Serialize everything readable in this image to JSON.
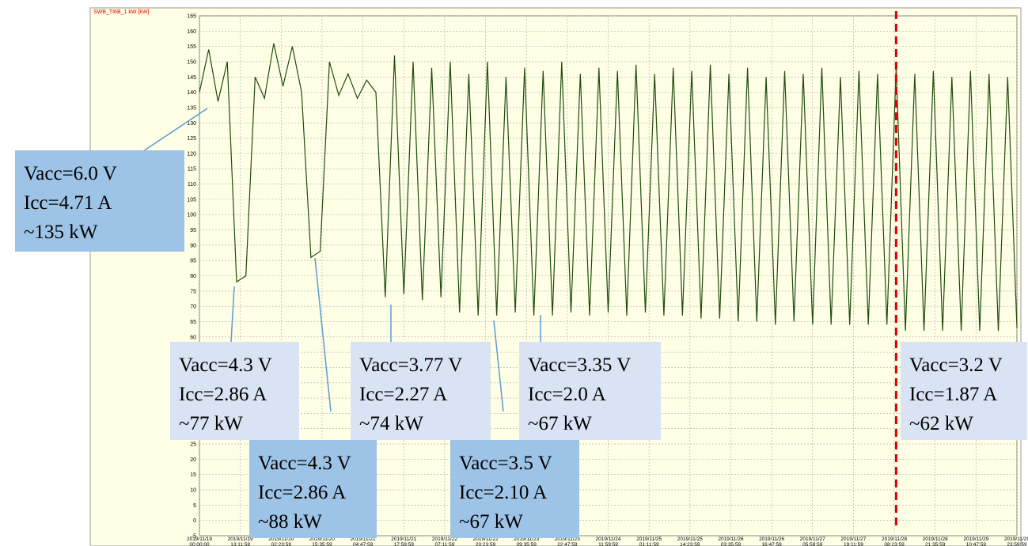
{
  "chart_data": {
    "type": "line",
    "title": "SWB_TI6B_1 kW [kW]",
    "ylim": [
      -5,
      165
    ],
    "yticks": [
      -5,
      0,
      5,
      10,
      15,
      20,
      25,
      30,
      35,
      40,
      45,
      50,
      55,
      60,
      65,
      70,
      75,
      80,
      85,
      90,
      95,
      100,
      105,
      110,
      115,
      120,
      125,
      130,
      135,
      140,
      145,
      150,
      155,
      160,
      165
    ],
    "xlim": [
      0,
      264
    ],
    "xticks": [
      {
        "value": 0,
        "label": [
          "2019/11/19",
          "00:00:00"
        ]
      },
      {
        "value": 13.2,
        "label": [
          "2019/11/19",
          "13:11:59"
        ]
      },
      {
        "value": 26.4,
        "label": [
          "2019/11/20",
          "02:23:59"
        ]
      },
      {
        "value": 39.6,
        "label": [
          "2019/11/20",
          "15:35:59"
        ]
      },
      {
        "value": 52.8,
        "label": [
          "2019/11/21",
          "04:47:59"
        ]
      },
      {
        "value": 66,
        "label": [
          "2019/11/21",
          "17:59:59"
        ]
      },
      {
        "value": 79.2,
        "label": [
          "2019/11/22",
          "07:11:59"
        ]
      },
      {
        "value": 92.4,
        "label": [
          "2019/11/22",
          "20:23:59"
        ]
      },
      {
        "value": 105.6,
        "label": [
          "2019/11/23",
          "09:35:59"
        ]
      },
      {
        "value": 118.8,
        "label": [
          "2019/11/23",
          "22:47:59"
        ]
      },
      {
        "value": 132,
        "label": [
          "2019/11/24",
          "11:59:59"
        ]
      },
      {
        "value": 145.2,
        "label": [
          "2019/11/25",
          "01:11:59"
        ]
      },
      {
        "value": 158.4,
        "label": [
          "2019/11/25",
          "14:23:59"
        ]
      },
      {
        "value": 171.6,
        "label": [
          "2019/11/26",
          "03:35:59"
        ]
      },
      {
        "value": 184.8,
        "label": [
          "2019/11/26",
          "16:47:59"
        ]
      },
      {
        "value": 198,
        "label": [
          "2019/11/27",
          "05:59:59"
        ]
      },
      {
        "value": 211.2,
        "label": [
          "2019/11/27",
          "19:11:59"
        ]
      },
      {
        "value": 224.4,
        "label": [
          "2019/11/28",
          "08:23:59"
        ]
      },
      {
        "value": 237.6,
        "label": [
          "2019/11/28",
          "21:35:59"
        ]
      },
      {
        "value": 250.8,
        "label": [
          "2019/11/29",
          "10:47:59"
        ]
      },
      {
        "value": 264,
        "label": [
          "2019/11/29",
          "23:59:59"
        ]
      }
    ],
    "grid": true,
    "marker_x": 225,
    "marker_color": "#e00000",
    "series": [
      {
        "color": "#1e4d0c",
        "x": [
          0,
          3,
          6,
          9,
          12,
          15,
          18,
          21,
          24,
          27,
          30,
          33,
          36,
          39,
          42,
          45,
          48,
          51,
          54,
          57,
          60,
          63,
          66,
          69,
          72,
          75,
          78,
          81,
          84,
          87,
          90,
          93,
          96,
          99,
          102,
          105,
          108,
          111,
          114,
          117,
          120,
          123,
          126,
          129,
          132,
          135,
          138,
          141,
          144,
          147,
          150,
          153,
          156,
          159,
          162,
          165,
          168,
          171,
          174,
          177,
          180,
          183,
          186,
          189,
          192,
          195,
          198,
          201,
          204,
          207,
          210,
          213,
          216,
          219,
          222,
          225,
          228,
          231,
          234,
          237,
          240,
          243,
          246,
          249,
          252,
          255,
          258,
          261,
          264
        ],
        "values": [
          140,
          154,
          137,
          150,
          78,
          80,
          145,
          138,
          156,
          142,
          155,
          140,
          86,
          88,
          150,
          139,
          146,
          138,
          144,
          140,
          73,
          152,
          74,
          150,
          72,
          148,
          73,
          150,
          68,
          146,
          67,
          150,
          67,
          145,
          68,
          148,
          67,
          147,
          67,
          150,
          68,
          146,
          67,
          148,
          68,
          147,
          67,
          149,
          68,
          146,
          67,
          148,
          67,
          147,
          66,
          149,
          66,
          146,
          65,
          148,
          65,
          145,
          64,
          147,
          65,
          146,
          64,
          148,
          64,
          145,
          64,
          147,
          64,
          146,
          64,
          148,
          62,
          146,
          62,
          147,
          62,
          145,
          62,
          147,
          62,
          146,
          62,
          145,
          63
        ]
      }
    ],
    "annotations": [
      {
        "lines": [
          "Vacc=6.0 V",
          "Icc=4.71 A",
          "~135 kW"
        ]
      },
      {
        "lines": [
          "Vacc=4.3 V",
          "Icc=2.86 A",
          "~77 kW"
        ]
      },
      {
        "lines": [
          "Vacc=4.3 V",
          "Icc=2.86 A",
          "~88 kW"
        ]
      },
      {
        "lines": [
          "Vacc=3.77 V",
          "Icc=2.27 A",
          "~74 kW"
        ]
      },
      {
        "lines": [
          "Vacc=3.5 V",
          "Icc=2.10 A",
          "~67 kW"
        ]
      },
      {
        "lines": [
          "Vacc=3.35 V",
          "Icc=2.0 A",
          "~67 kW"
        ]
      },
      {
        "lines": [
          "Vacc=3.2 V",
          "Icc=1.87 A",
          "~62 kW"
        ]
      }
    ]
  }
}
